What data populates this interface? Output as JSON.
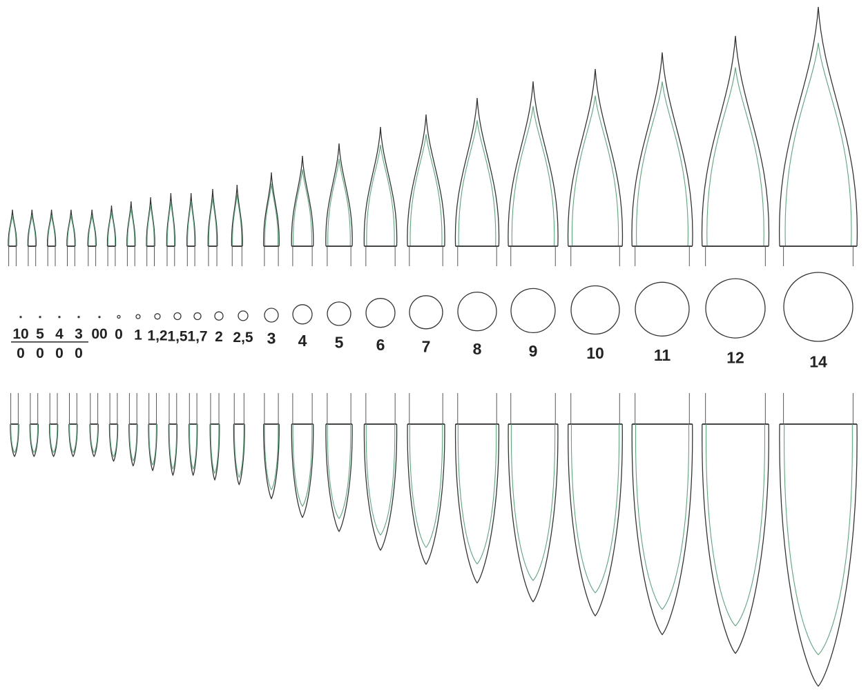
{
  "sizes": [
    {
      "numerator": "10",
      "denominator": "0"
    },
    {
      "numerator": "5",
      "denominator": "0"
    },
    {
      "numerator": "4",
      "denominator": "0"
    },
    {
      "numerator": "3",
      "denominator": "0"
    },
    {
      "label": "00"
    },
    {
      "label": "0"
    },
    {
      "label": "1"
    },
    {
      "label": "1,2"
    },
    {
      "label": "1,5"
    },
    {
      "label": "1,7"
    },
    {
      "label": "2"
    },
    {
      "label": "2,5"
    },
    {
      "label": "3"
    },
    {
      "label": "4"
    },
    {
      "label": "5"
    },
    {
      "label": "6"
    },
    {
      "label": "7"
    },
    {
      "label": "8"
    },
    {
      "label": "9"
    },
    {
      "label": "10"
    },
    {
      "label": "11"
    },
    {
      "label": "12"
    },
    {
      "label": "14"
    }
  ]
}
